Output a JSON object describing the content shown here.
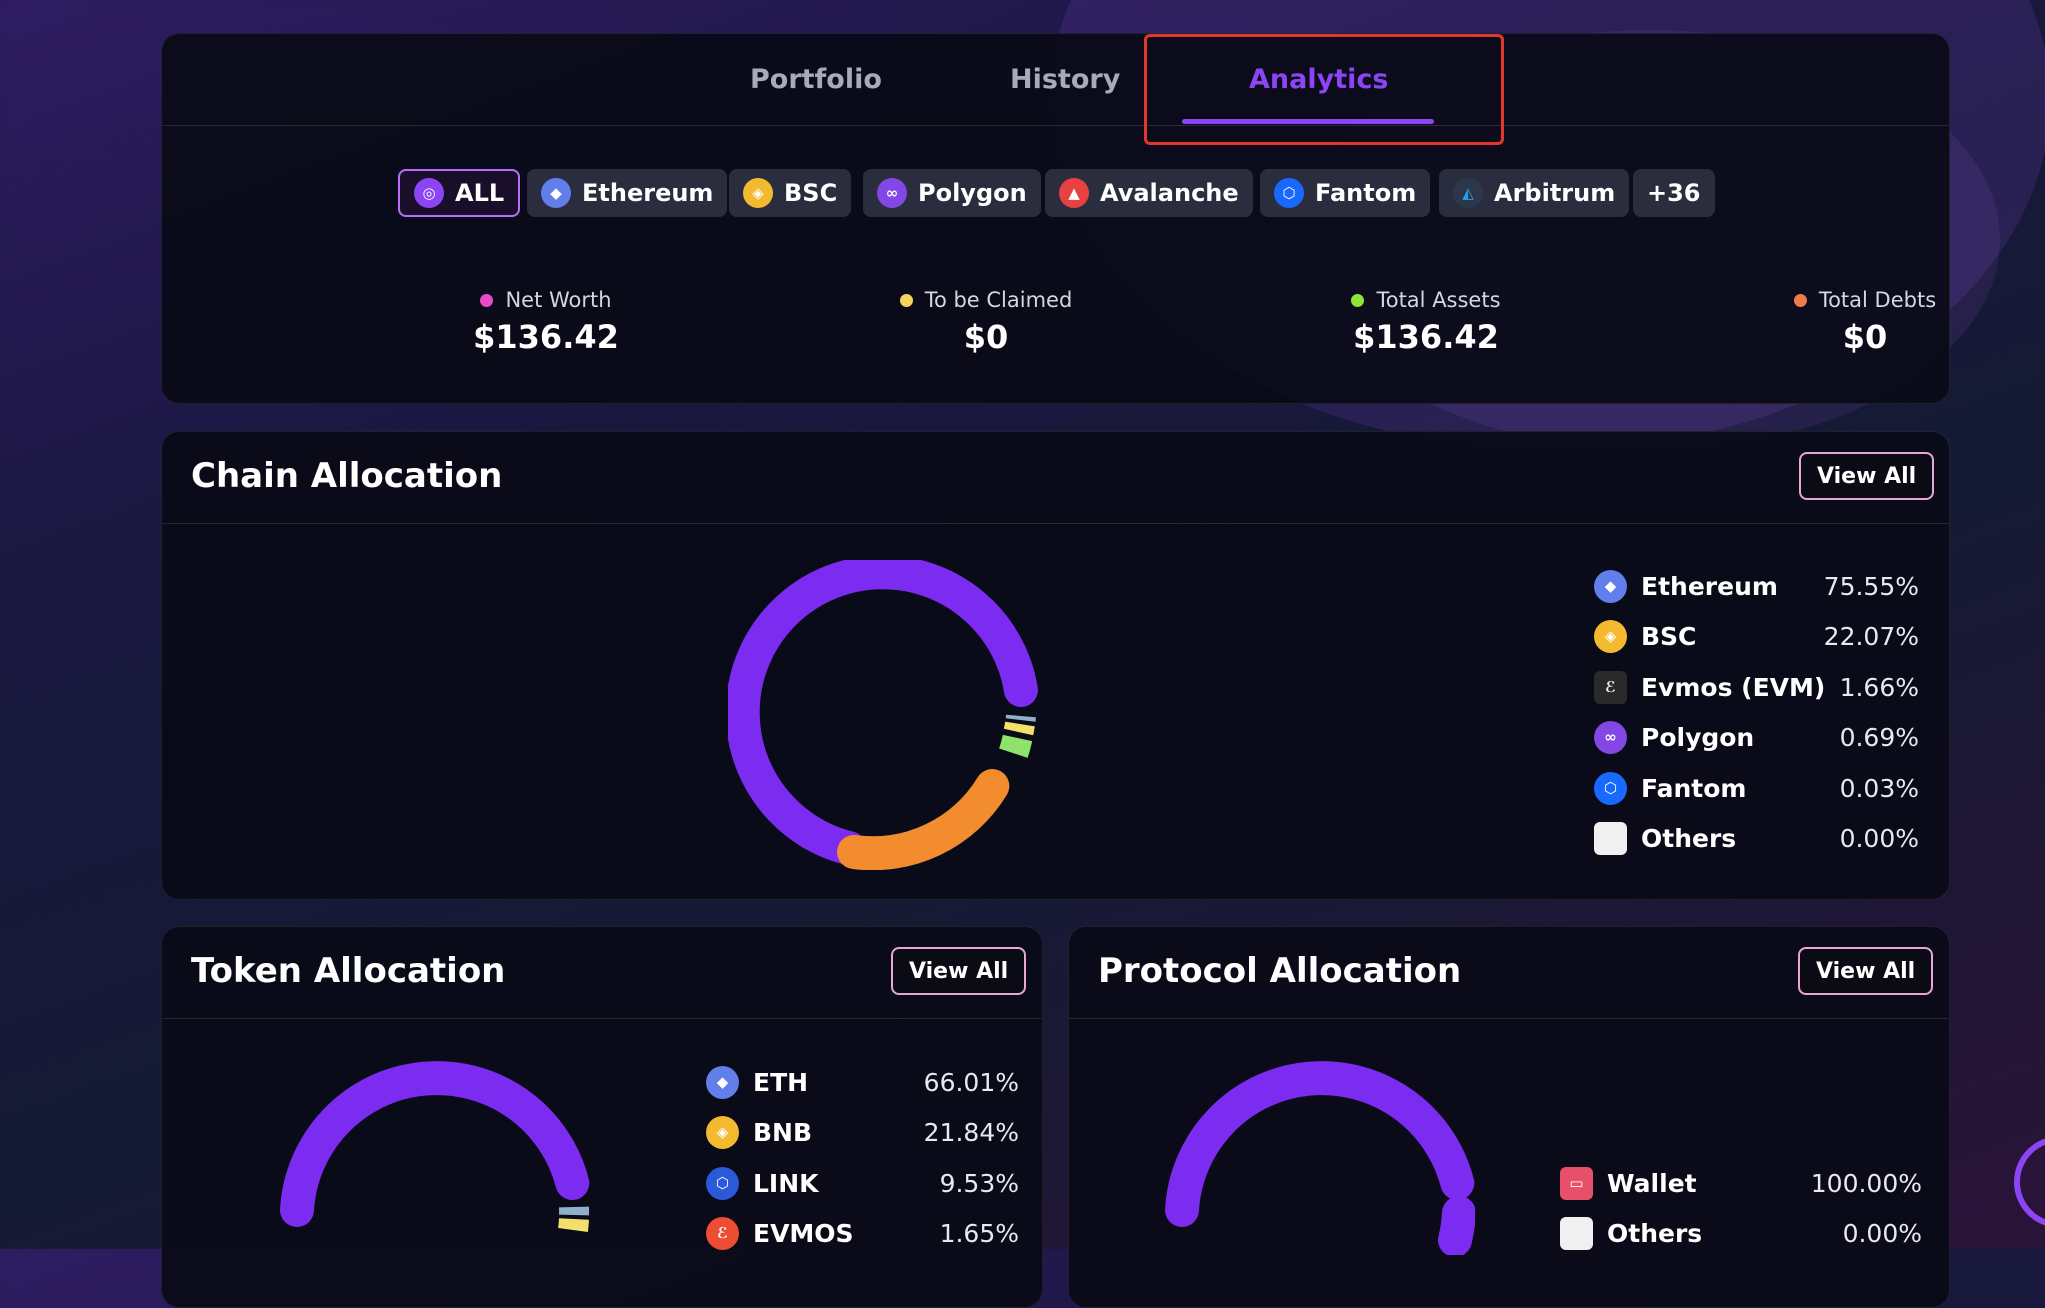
{
  "tabs": {
    "portfolio": "Portfolio",
    "history": "History",
    "analytics": "Analytics",
    "active": "analytics"
  },
  "chain_filters": [
    {
      "label": "ALL",
      "icon": "all-chains-icon",
      "color": "#8b45f5",
      "active": true
    },
    {
      "label": "Ethereum",
      "icon": "ethereum-icon",
      "color": "#627eea"
    },
    {
      "label": "BSC",
      "icon": "bsc-icon",
      "color": "#f3ba2f"
    },
    {
      "label": "Polygon",
      "icon": "polygon-icon",
      "color": "#8247e5"
    },
    {
      "label": "Avalanche",
      "icon": "avalanche-icon",
      "color": "#e84142"
    },
    {
      "label": "Fantom",
      "icon": "fantom-icon",
      "color": "#1969ff"
    },
    {
      "label": "Arbitrum",
      "icon": "arbitrum-icon",
      "color": "#2d374b"
    },
    {
      "label": "+36"
    }
  ],
  "stats": [
    {
      "label": "Net Worth",
      "value": "$136.42",
      "color": "#e94ac6"
    },
    {
      "label": "To be Claimed",
      "value": "$0",
      "color": "#f2d35b"
    },
    {
      "label": "Total Assets",
      "value": "$136.42",
      "color": "#8ee53a"
    },
    {
      "label": "Total Debts",
      "value": "$0",
      "color": "#f07a4a"
    }
  ],
  "chain_allocation": {
    "title": "Chain Allocation",
    "view_all": "View All",
    "items": [
      {
        "name": "Ethereum",
        "pct": "75.55%",
        "icon": "ethereum-icon",
        "color": "#627eea"
      },
      {
        "name": "BSC",
        "pct": "22.07%",
        "icon": "bsc-icon",
        "color": "#f3ba2f"
      },
      {
        "name": "Evmos (EVM)",
        "pct": "1.66%",
        "icon": "evmos-icon",
        "color": "#2a2a2a"
      },
      {
        "name": "Polygon",
        "pct": "0.69%",
        "icon": "polygon-icon",
        "color": "#8247e5"
      },
      {
        "name": "Fantom",
        "pct": "0.03%",
        "icon": "fantom-icon",
        "color": "#1969ff"
      },
      {
        "name": "Others",
        "pct": "0.00%",
        "icon": "others-icon",
        "color": "#f0f0f0"
      }
    ]
  },
  "token_allocation": {
    "title": "Token Allocation",
    "view_all": "View All",
    "items": [
      {
        "name": "ETH",
        "pct": "66.01%",
        "icon": "eth-token-icon",
        "color": "#627eea"
      },
      {
        "name": "BNB",
        "pct": "21.84%",
        "icon": "bnb-token-icon",
        "color": "#f3ba2f"
      },
      {
        "name": "LINK",
        "pct": "9.53%",
        "icon": "link-token-icon",
        "color": "#2a5ada"
      },
      {
        "name": "EVMOS",
        "pct": "1.65%",
        "icon": "evmos-token-icon",
        "color": "#ed4e33"
      }
    ]
  },
  "protocol_allocation": {
    "title": "Protocol Allocation",
    "view_all": "View All",
    "items": [
      {
        "name": "Wallet",
        "pct": "100.00%",
        "icon": "wallet-icon",
        "color": "#e8506a"
      },
      {
        "name": "Others",
        "pct": "0.00%",
        "icon": "others-icon",
        "color": "#f0f0f0"
      }
    ]
  },
  "donut_colors": {
    "primary": "#7b2cf0",
    "secondary": "#f28c2e",
    "tertiary": "#8fe36a",
    "quaternary": "#f2e06a",
    "fifth": "#8fb0c8"
  }
}
